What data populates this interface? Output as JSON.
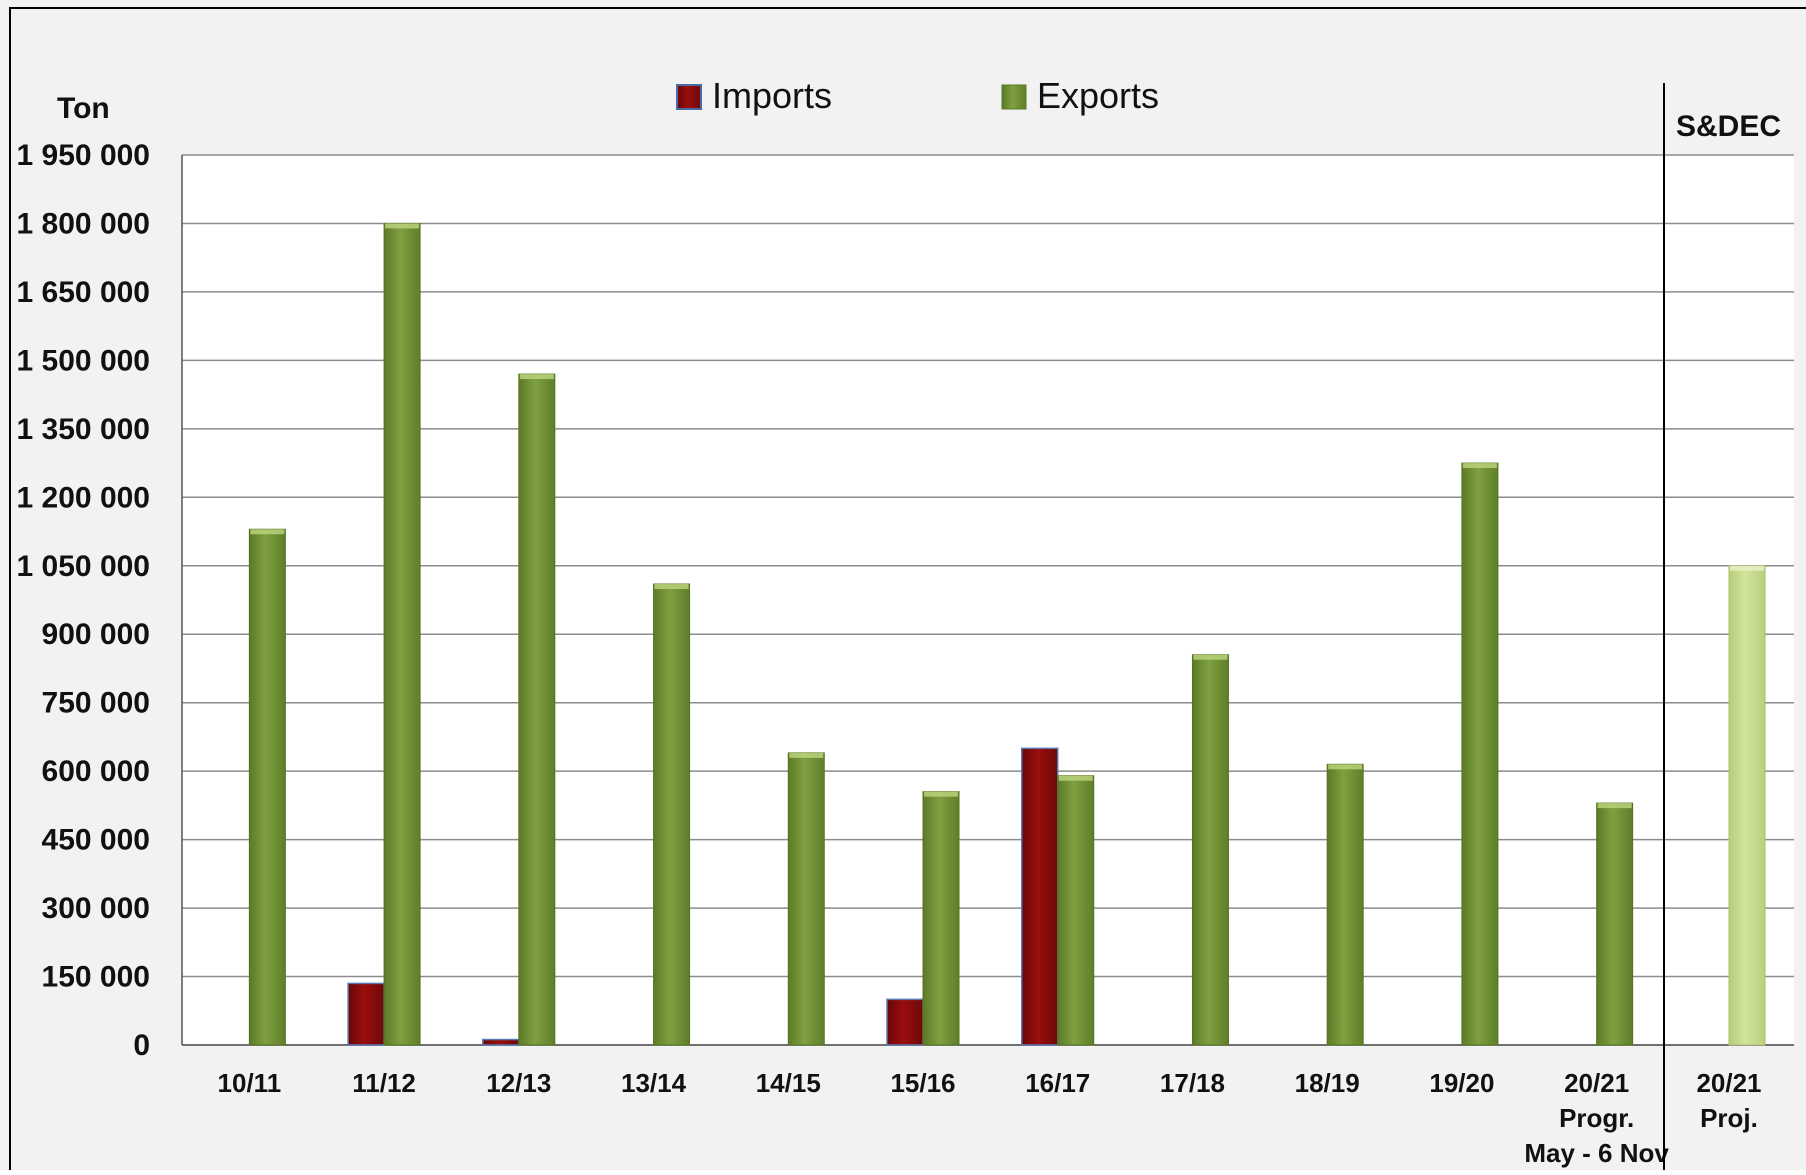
{
  "chart_data": {
    "type": "bar",
    "ylabel": "Ton",
    "ylim": [
      0,
      1950000
    ],
    "yticks": [
      0,
      150000,
      300000,
      450000,
      600000,
      750000,
      900000,
      1050000,
      1200000,
      1350000,
      1500000,
      1650000,
      1800000,
      1950000
    ],
    "ytick_labels": [
      "0",
      "150 000",
      "300 000",
      "450 000",
      "600 000",
      "750 000",
      "900 000",
      "1 050 000",
      "1 200 000",
      "1 350 000",
      "1 500 000",
      "1 650 000",
      "1 800 000",
      "1 950 000"
    ],
    "grid": true,
    "legend_position": "top",
    "categories": [
      "10/11",
      "11/12",
      "12/13",
      "13/14",
      "14/15",
      "15/16",
      "16/17",
      "17/18",
      "18/19",
      "19/20",
      "20/21 Progr. May - 6 Nov",
      "20/21 Proj."
    ],
    "category_labels": [
      [
        "10/11"
      ],
      [
        "11/12"
      ],
      [
        "12/13"
      ],
      [
        "13/14"
      ],
      [
        "14/15"
      ],
      [
        "15/16"
      ],
      [
        "16/17"
      ],
      [
        "17/18"
      ],
      [
        "18/19"
      ],
      [
        "19/20"
      ],
      [
        "20/21",
        "Progr.",
        "May - 6 Nov"
      ],
      [
        "20/21",
        "Proj."
      ]
    ],
    "series": [
      {
        "name": "Imports",
        "color": "#8b0a0a",
        "values": [
          0,
          135000,
          12000,
          0,
          0,
          100000,
          650000,
          0,
          0,
          0,
          0,
          0
        ]
      },
      {
        "name": "Exports",
        "color": "#7a9a3a",
        "values": [
          1130000,
          1800000,
          1470000,
          1010000,
          640000,
          555000,
          590000,
          855000,
          615000,
          1275000,
          530000,
          1050000
        ]
      }
    ],
    "projection_color": "#c4d88a",
    "section_label": "S&DEC"
  }
}
